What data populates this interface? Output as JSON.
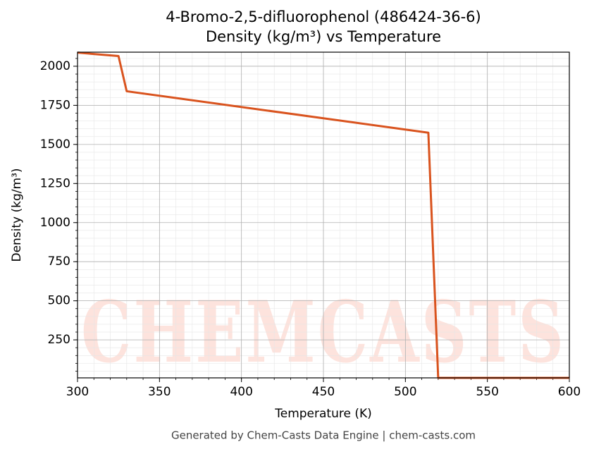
{
  "chart_data": {
    "type": "line",
    "title": "4-Bromo-2,5-difluorophenol (486424-36-6)",
    "subtitle": "Density (kg/m³) vs Temperature",
    "x_label": "Temperature (K)",
    "y_label": "Density (kg/m³)",
    "watermark": "CHEMCASTS",
    "footer": "Generated by Chem-Casts Data Engine | chem-casts.com",
    "x": [
      300,
      325,
      330,
      514,
      520,
      600
    ],
    "series": [
      {
        "name": "Density",
        "color": "#d9531e",
        "values": [
          2087,
          2065,
          1840,
          1575,
          7,
          7
        ]
      }
    ],
    "xlim": [
      300,
      600
    ],
    "xticks": [
      300,
      350,
      400,
      450,
      500,
      550,
      600
    ],
    "ylim": [
      7,
      2090
    ],
    "yticks": [
      250,
      500,
      750,
      1000,
      1250,
      1500,
      1750,
      2000
    ],
    "grid": true,
    "legend": false
  }
}
